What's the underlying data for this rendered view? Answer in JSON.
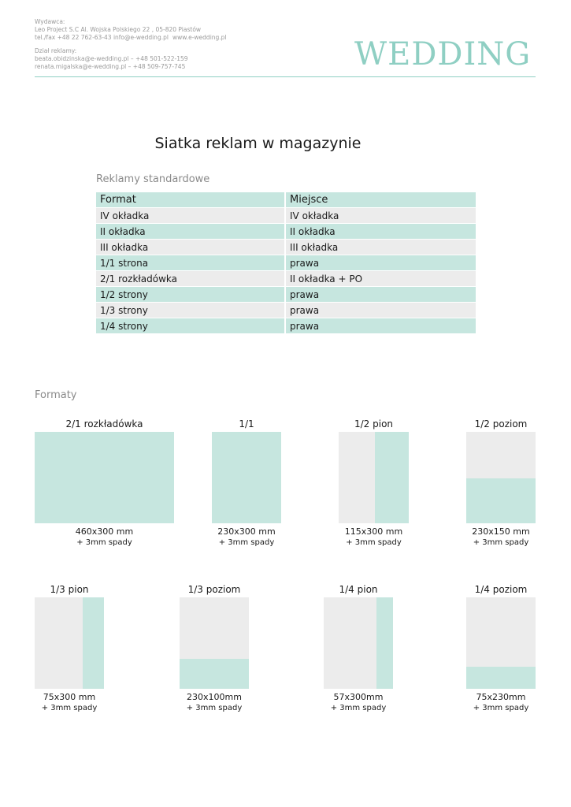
{
  "header": {
    "publisher_label": "Wydawca:",
    "publisher_address": "Leo Project S.C Al. Wojska Polskiego 22 , 05-820 Piastów",
    "publisher_contact": "tel./fax +48 22 762-63-43  info@e-wedding.pl",
    "website": "www.e-wedding.pl",
    "ads_label": "Dział reklamy:",
    "ads_contacts": [
      "beata.obidzinska@e-wedding.pl  – +48 501-522-159",
      "renata.migalska@e-wedding.pl – +48 509-757-745"
    ],
    "logo": "WEDDING"
  },
  "title": "Siatka reklam w magazynie",
  "table": {
    "title": "Reklamy standardowe",
    "header": [
      "Format",
      "Miejsce"
    ],
    "rows": [
      [
        "IV okładka",
        "IV okładka"
      ],
      [
        "II okładka",
        "II okładka"
      ],
      [
        "III okładka",
        "III okładka"
      ],
      [
        "1/1 strona",
        "prawa"
      ],
      [
        "2/1 rozkładówka",
        "II okładka + PO"
      ],
      [
        "1/2 strony",
        "prawa"
      ],
      [
        "1/3 strony",
        "prawa"
      ],
      [
        "1/4 strony",
        "prawa"
      ]
    ]
  },
  "formats": {
    "title": "Formaty",
    "items": [
      {
        "label": "2/1 rozkładówka",
        "size": "460x300 mm",
        "bleed": "+ 3mm spady"
      },
      {
        "label": "1/1",
        "size": "230x300 mm",
        "bleed": "+ 3mm spady"
      },
      {
        "label": "1/2 pion",
        "size": "115x300 mm",
        "bleed": "+ 3mm spady"
      },
      {
        "label": "1/2 poziom",
        "size": "230x150 mm",
        "bleed": "+ 3mm spady"
      },
      {
        "label": "1/3 pion",
        "size": "75x300 mm",
        "bleed": "+ 3mm spady"
      },
      {
        "label": "1/3 poziom",
        "size": "230x100mm",
        "bleed": "+ 3mm spady"
      },
      {
        "label": "1/4 pion",
        "size": "57x300mm",
        "bleed": "+ 3mm spady"
      },
      {
        "label": "1/4 poziom",
        "size": "75x230mm",
        "bleed": "+ 3mm spady"
      }
    ]
  }
}
